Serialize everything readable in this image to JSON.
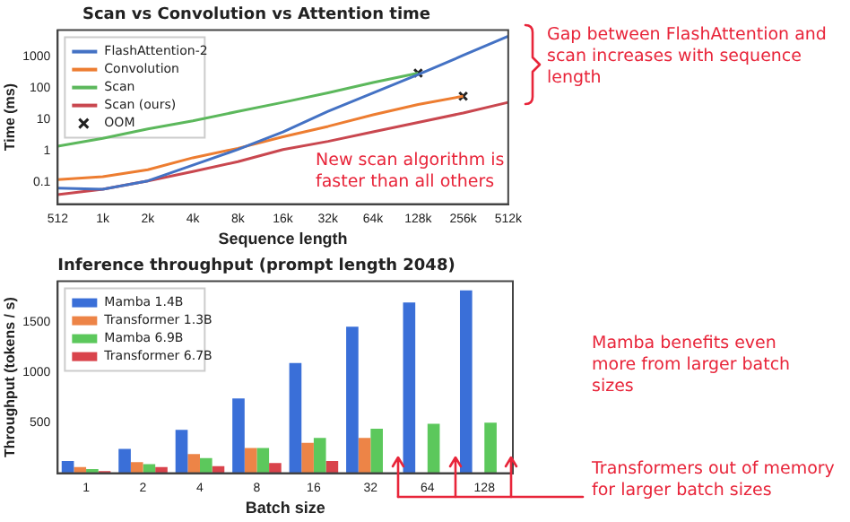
{
  "chart_data": [
    {
      "type": "line",
      "title": "Scan vs Convolution vs Attention time",
      "xlabel": "Sequence length",
      "ylabel": "Time (ms)",
      "log": "y",
      "legend": "top left",
      "marker": "none",
      "line_style": "solid",
      "categories": [
        "512",
        "1k",
        "2k",
        "4k",
        "8k",
        "16k",
        "32k",
        "64k",
        "128k",
        "256k",
        "512k"
      ],
      "ylim": [
        0.02,
        7000
      ],
      "yticks": [
        0.1,
        1,
        10,
        100,
        1000
      ],
      "series": [
        {
          "name": "FlashAttention-2",
          "color": "#4472c4",
          "values": [
            0.065,
            0.06,
            0.11,
            0.35,
            1.1,
            4,
            18,
            70,
            270,
            1100,
            4500
          ]
        },
        {
          "name": "Convolution",
          "color": "#ed7d31",
          "values": [
            0.12,
            0.15,
            0.25,
            0.6,
            1.2,
            2.8,
            6,
            14,
            30,
            55,
            null
          ]
        },
        {
          "name": "Scan",
          "color": "#5cb85c",
          "values": [
            1.4,
            2.5,
            5,
            9,
            18,
            35,
            70,
            150,
            300,
            null,
            null
          ]
        },
        {
          "name": "Scan (ours)",
          "color": "#c9474f",
          "values": [
            0.04,
            0.06,
            0.11,
            0.22,
            0.45,
            1.1,
            2,
            4,
            8,
            16,
            35
          ]
        },
        {
          "name": "OOM",
          "type": "scatter",
          "marker": "cross",
          "color": "#222222",
          "x": [
            "128k",
            "256k"
          ],
          "values": [
            300,
            55
          ]
        }
      ],
      "annotations": [
        "New scan algorithm is faster than all others",
        "Gap between FlashAttention and scan increases with sequence length"
      ]
    },
    {
      "type": "bar",
      "title": "Inference throughput (prompt length 2048)",
      "xlabel": "Batch size",
      "ylabel": "Throughput (tokens / s)",
      "legend": "top left",
      "categories": [
        "1",
        "2",
        "4",
        "8",
        "16",
        "32",
        "64",
        "128"
      ],
      "ylim": [
        0,
        1900
      ],
      "yticks": [
        500,
        1000,
        1500
      ],
      "series": [
        {
          "name": "Mamba 1.4B",
          "color": "#3a6fd8",
          "values": [
            120,
            240,
            430,
            740,
            1090,
            1450,
            1690,
            1810
          ]
        },
        {
          "name": "Transformer 1.3B",
          "color": "#ed8447",
          "values": [
            60,
            110,
            190,
            250,
            300,
            350,
            null,
            null
          ]
        },
        {
          "name": "Mamba 6.9B",
          "color": "#5cc85c",
          "values": [
            40,
            90,
            150,
            250,
            350,
            440,
            490,
            500
          ]
        },
        {
          "name": "Transformer 6.7B",
          "color": "#d9434b",
          "values": [
            20,
            60,
            70,
            100,
            120,
            null,
            null,
            null
          ]
        }
      ],
      "annotations": [
        "Mamba benefits even more from larger batch sizes",
        "Transformers out of memory for larger batch sizes"
      ]
    }
  ]
}
